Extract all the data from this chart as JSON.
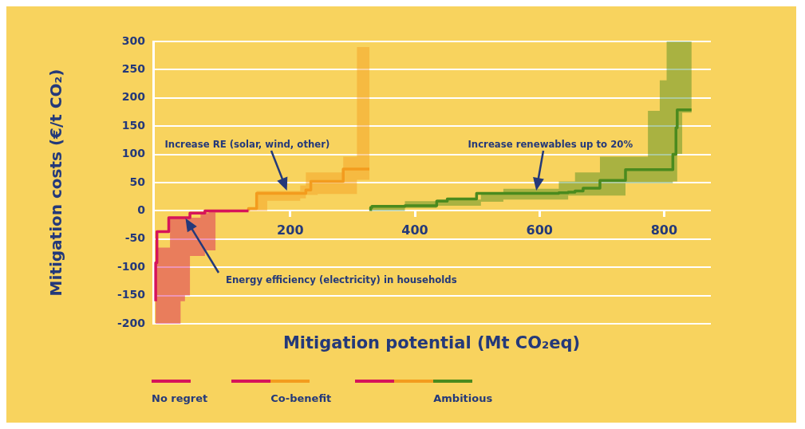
{
  "chart_data": {
    "type": "step",
    "xlabel": "Mitigation potential (Mt CO₂eq)",
    "ylabel": "Mitigation costs (€/t CO₂)",
    "xlim": [
      -20,
      875
    ],
    "xticks": [
      200,
      400,
      600,
      800
    ],
    "ylim": [
      -200,
      300
    ],
    "yticks": [
      -200,
      -150,
      -100,
      -50,
      0,
      50,
      100,
      150,
      200,
      250,
      300
    ],
    "grid": "y",
    "legend": "bottom",
    "series": [
      {
        "name": "No regret",
        "color": "#d6145a",
        "x": [
          -16,
          -14,
          5,
          7,
          24,
          31,
          39,
          56,
          63,
          69,
          80,
          103,
          133
        ],
        "values": [
          -160,
          -92,
          -37,
          -12,
          -12,
          -12,
          -12,
          -4,
          -4,
          0,
          0,
          0,
          0
        ],
        "upper": [
          -65,
          -65,
          -65,
          -12,
          -12,
          -12,
          -12,
          -4,
          -4,
          0,
          0,
          0,
          0
        ],
        "lower": [
          -200,
          -200,
          -200,
          -200,
          -160,
          -150,
          -80,
          -80,
          -70,
          -70,
          -3,
          0,
          0
        ]
      },
      {
        "name": "Co-benefit",
        "color": "#f39c1e",
        "x": [
          133,
          146,
          163,
          216,
          225,
          233,
          244,
          285,
          299,
          307,
          327
        ],
        "values": [
          0,
          4,
          31,
          31,
          31,
          37,
          52,
          52,
          74,
          74,
          74
        ],
        "upper": [
          5,
          35,
          35,
          45,
          68,
          68,
          68,
          96,
          96,
          290,
          290
        ],
        "lower": [
          0,
          0,
          18,
          22,
          28,
          28,
          30,
          30,
          30,
          55,
          55
        ]
      },
      {
        "name": "Ambitious",
        "color": "#4a8a1e",
        "x": [
          329,
          331,
          384,
          435,
          452,
          499,
          506,
          508,
          542,
          631,
          646,
          657,
          670,
          678,
          697,
          704,
          738,
          740,
          774,
          793,
          804,
          814,
          819,
          821,
          829,
          844
        ],
        "values": [
          0,
          6,
          8,
          9,
          17,
          21,
          31,
          31,
          31,
          31,
          32,
          33,
          35,
          40,
          40,
          54,
          54,
          73,
          73,
          73,
          73,
          73,
          100,
          147,
          179,
          179
        ],
        "upper": [
          8,
          8,
          17,
          20,
          20,
          20,
          31,
          31,
          39,
          52,
          52,
          68,
          68,
          68,
          96,
          96,
          96,
          96,
          177,
          231,
          300,
          300,
          300,
          300,
          300,
          300
        ],
        "lower": [
          0,
          0,
          5,
          9,
          9,
          9,
          16,
          16,
          20,
          20,
          27,
          27,
          27,
          27,
          27,
          27,
          49,
          49,
          49,
          49,
          49,
          52,
          52,
          101,
          174,
          174
        ]
      }
    ],
    "annotations": [
      "Increase RE (solar, wind, other)",
      "Energy efficiency (electricity) in households",
      "Increase renewables up to 20%"
    ]
  }
}
